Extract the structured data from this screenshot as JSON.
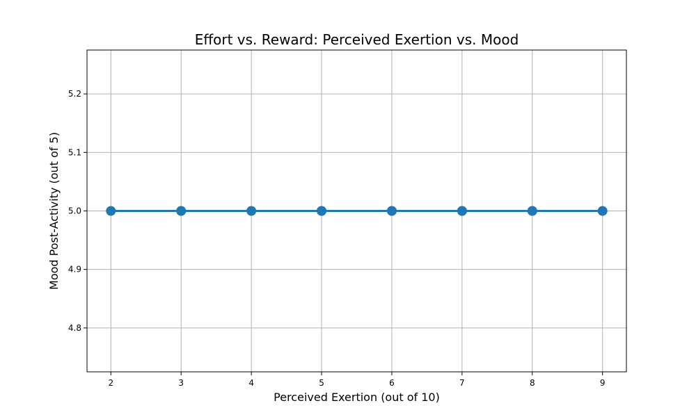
{
  "chart_data": {
    "type": "line",
    "title": "Effort vs. Reward: Perceived Exertion vs. Mood",
    "xlabel": "Perceived Exertion (out of 10)",
    "ylabel": "Mood Post-Activity (out of 5)",
    "x_ticks": [
      "2",
      "3",
      "4",
      "5",
      "6",
      "7",
      "8",
      "9"
    ],
    "y_ticks": [
      "4.8",
      "4.9",
      "5.0",
      "5.1",
      "5.2"
    ],
    "xlim": [
      1.66,
      9.34
    ],
    "ylim": [
      4.725,
      5.275
    ],
    "grid": true,
    "legend": "none",
    "series": [
      {
        "x": [
          2,
          3,
          3,
          4,
          5,
          5,
          6,
          6,
          7,
          7,
          8,
          8,
          9
        ],
        "y": [
          5.0,
          5.0,
          5.0,
          5.0,
          5.0,
          5.0,
          5.0,
          5.0,
          5.0,
          5.0,
          5.0,
          5.0,
          5.0
        ],
        "color": "#1f77b4",
        "markers": true,
        "line": true
      }
    ]
  }
}
